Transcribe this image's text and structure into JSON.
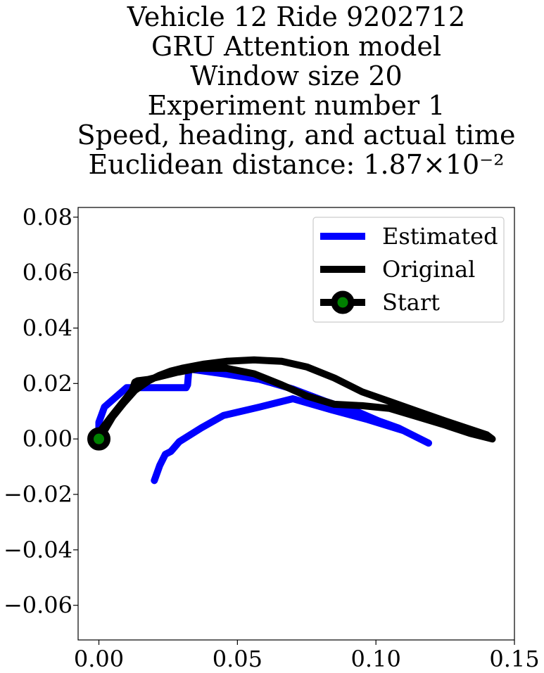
{
  "chart_data": {
    "type": "line",
    "title_lines": [
      "Vehicle 12 Ride 9202712",
      "GRU Attention model",
      "Window size 20",
      "Experiment number 1",
      "Speed, heading, and actual time",
      "Euclidean distance: 1.87×10⁻²"
    ],
    "xlim": [
      -0.0075,
      0.15
    ],
    "ylim": [
      -0.0725,
      0.0835
    ],
    "xticks": [
      0.0,
      0.05,
      0.1,
      0.15
    ],
    "xtick_labels": [
      "0.00",
      "0.05",
      "0.10",
      "0.15"
    ],
    "yticks": [
      0.08,
      0.06,
      0.04,
      0.02,
      0.0,
      -0.02,
      -0.04,
      -0.06
    ],
    "ytick_labels": [
      "0.08",
      "0.06",
      "0.04",
      "0.02",
      "0.00",
      "−0.02",
      "−0.04",
      "−0.06"
    ],
    "grid": false,
    "legend_position": "top-right",
    "series": [
      {
        "name": "Estimated",
        "color": "#0000ff",
        "x": [
          0.0,
          0.0,
          0.002,
          0.006,
          0.01,
          0.016,
          0.022,
          0.026,
          0.03,
          0.0315,
          0.032,
          0.0325,
          0.034,
          0.045,
          0.058,
          0.07,
          0.082,
          0.094,
          0.101,
          0.108,
          0.114,
          0.119,
          0.11,
          0.097,
          0.084,
          0.07,
          0.058,
          0.045,
          0.037,
          0.029,
          0.026,
          0.024,
          0.022,
          0.02
        ],
        "y": [
          0.0,
          0.006,
          0.0115,
          0.015,
          0.0185,
          0.0185,
          0.0185,
          0.0185,
          0.0185,
          0.0185,
          0.0195,
          0.0255,
          0.025,
          0.0235,
          0.0215,
          0.018,
          0.0135,
          0.0095,
          0.0065,
          0.004,
          0.001,
          -0.0015,
          0.003,
          0.007,
          0.0105,
          0.0145,
          0.0115,
          0.0085,
          0.004,
          -0.001,
          -0.0045,
          -0.0055,
          -0.0095,
          -0.015
        ]
      },
      {
        "name": "Original",
        "color": "#000000",
        "x": [
          0.0,
          0.002,
          0.005,
          0.009,
          0.013,
          0.018,
          0.022,
          0.026,
          0.03,
          0.038,
          0.046,
          0.056,
          0.066,
          0.075,
          0.085,
          0.095,
          0.105,
          0.115,
          0.125,
          0.134,
          0.14,
          0.142,
          0.14,
          0.134,
          0.125,
          0.115,
          0.105,
          0.095,
          0.085,
          0.075,
          0.066,
          0.056,
          0.046,
          0.036,
          0.028,
          0.022,
          0.018,
          0.014,
          0.013,
          0.012,
          0.008,
          0.004,
          0.001,
          0.0
        ],
        "y": [
          0.0,
          0.003,
          0.008,
          0.013,
          0.0175,
          0.021,
          0.023,
          0.0245,
          0.0255,
          0.027,
          0.028,
          0.0285,
          0.028,
          0.026,
          0.022,
          0.017,
          0.0135,
          0.01,
          0.0065,
          0.0035,
          0.0015,
          0.0,
          0.0005,
          0.002,
          0.005,
          0.008,
          0.011,
          0.012,
          0.0125,
          0.0155,
          0.0195,
          0.0235,
          0.0255,
          0.0255,
          0.024,
          0.0225,
          0.0215,
          0.021,
          0.0205,
          0.0175,
          0.0125,
          0.0075,
          0.0035,
          0.0
        ]
      }
    ],
    "start_marker": {
      "name": "Start",
      "x": 0.0,
      "y": 0.0,
      "edge_color": "#000000",
      "face_color": "#008000"
    }
  }
}
